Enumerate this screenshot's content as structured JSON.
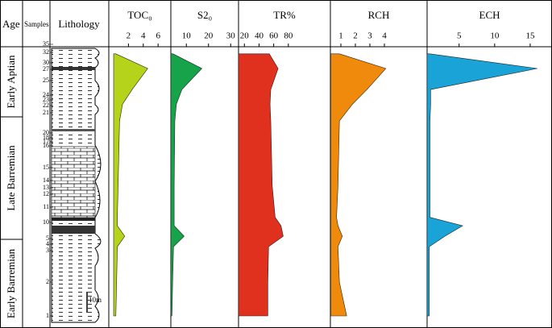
{
  "chart_data": {
    "type": "area",
    "age_title": "Age",
    "samples_title": "Samples",
    "lithology_title": "Lithology",
    "ages": [
      "Early Aptian",
      "Late Barremian",
      "Early Barremian"
    ],
    "samples": [
      "35",
      "32",
      "30",
      "27",
      "25",
      "24",
      "23",
      "22",
      "21",
      "20",
      "18",
      "17",
      "16",
      "15",
      "14",
      "13",
      "12",
      "11",
      "10",
      "5",
      "4",
      "3",
      "2",
      "1"
    ],
    "scale_label": "10m",
    "ylim": [
      0,
      133
    ],
    "heights": [
      5,
      21,
      38,
      43,
      48,
      52,
      67,
      98,
      106,
      113,
      123,
      130
    ],
    "series": [
      {
        "name": "TOC₀",
        "color": "#b5d31b",
        "xlim": [
          0,
          7.5
        ],
        "xticks": [
          2,
          4,
          6
        ],
        "values": [
          0.3,
          0.4,
          0.5,
          1.5,
          0.5,
          0.5,
          0.6,
          0.8,
          1.2,
          2.5,
          4.6,
          0.3
        ]
      },
      {
        "name": "S2₀",
        "color": "#16a34a",
        "xlim": [
          3,
          33
        ],
        "xticks": [
          10,
          20,
          30
        ],
        "values": [
          3.5,
          3.8,
          4.2,
          9,
          4.5,
          4.5,
          4.5,
          4.8,
          5.5,
          8,
          17,
          4
        ]
      },
      {
        "name": "TR%",
        "color": "#e0301e",
        "xlim": [
          12,
          100
        ],
        "xticks": [
          20,
          40,
          60,
          80
        ],
        "values": [
          52,
          52,
          53,
          73,
          70,
          62,
          58,
          56,
          55,
          56,
          66,
          54
        ]
      },
      {
        "name": "RCH",
        "color": "#f08a0c",
        "xlim": [
          0.3,
          6.5
        ],
        "xticks": [
          1,
          2,
          3,
          4
        ],
        "values": [
          1.4,
          0.9,
          0.8,
          1.1,
          0.8,
          0.7,
          0.8,
          0.9,
          1.8,
          2.8,
          4.1,
          0.9
        ]
      },
      {
        "name": "ECH",
        "color": "#1aa3d6",
        "xlim": [
          0.5,
          17.5
        ],
        "xticks": [
          5,
          10,
          15
        ],
        "values": [
          0.8,
          0.8,
          0.8,
          3,
          5.5,
          0.9,
          0.9,
          0.9,
          1.0,
          1.0,
          16,
          0.9
        ]
      }
    ]
  }
}
